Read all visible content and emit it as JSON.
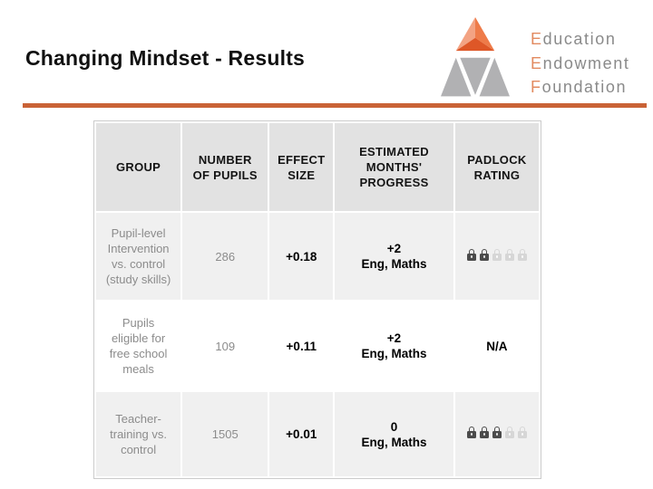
{
  "slide": {
    "title": "Changing Mindset - Results"
  },
  "divider_color": "#C96236",
  "logo": {
    "lines": [
      {
        "initial": "E",
        "rest": "ducation"
      },
      {
        "initial": "E",
        "rest": "ndowment"
      },
      {
        "initial": "F",
        "rest": "oundation"
      }
    ],
    "colors": {
      "pyramid_light": "#F3A383",
      "pyramid_mid": "#EE7B49",
      "pyramid_dark": "#DE5727",
      "triangle_gray": "#B1B1B3",
      "initial_orange": "#E28A60",
      "text_gray": "#8A8A8A"
    }
  },
  "table": {
    "columns": [
      {
        "lines": [
          "GROUP"
        ]
      },
      {
        "lines": [
          "NUMBER",
          "OF PUPILS"
        ]
      },
      {
        "lines": [
          "EFFECT",
          "SIZE"
        ]
      },
      {
        "lines": [
          "ESTIMATED",
          "MONTHS'",
          "PROGRESS"
        ]
      },
      {
        "lines": [
          "PADLOCK",
          "RATING"
        ]
      }
    ],
    "padlock_total": 5,
    "rows": [
      {
        "group_lines": [
          "Pupil-level",
          "Intervention",
          "vs. control",
          "(study skills)"
        ],
        "pupils": "286",
        "effect_size": "+0.18",
        "progress": "+2",
        "subjects": "Eng, Maths",
        "padlock_rating": 2
      },
      {
        "group_lines": [
          "Pupils",
          "eligible for",
          "free school",
          "meals"
        ],
        "pupils": "109",
        "effect_size": "+0.11",
        "progress": "+2",
        "subjects": "Eng, Maths",
        "padlock_rating": "N/A"
      },
      {
        "group_lines": [
          "Teacher-",
          "training vs.",
          "control"
        ],
        "pupils": "1505",
        "effect_size": "+0.01",
        "progress": "0",
        "subjects": "Eng, Maths",
        "padlock_rating": 3
      }
    ]
  }
}
